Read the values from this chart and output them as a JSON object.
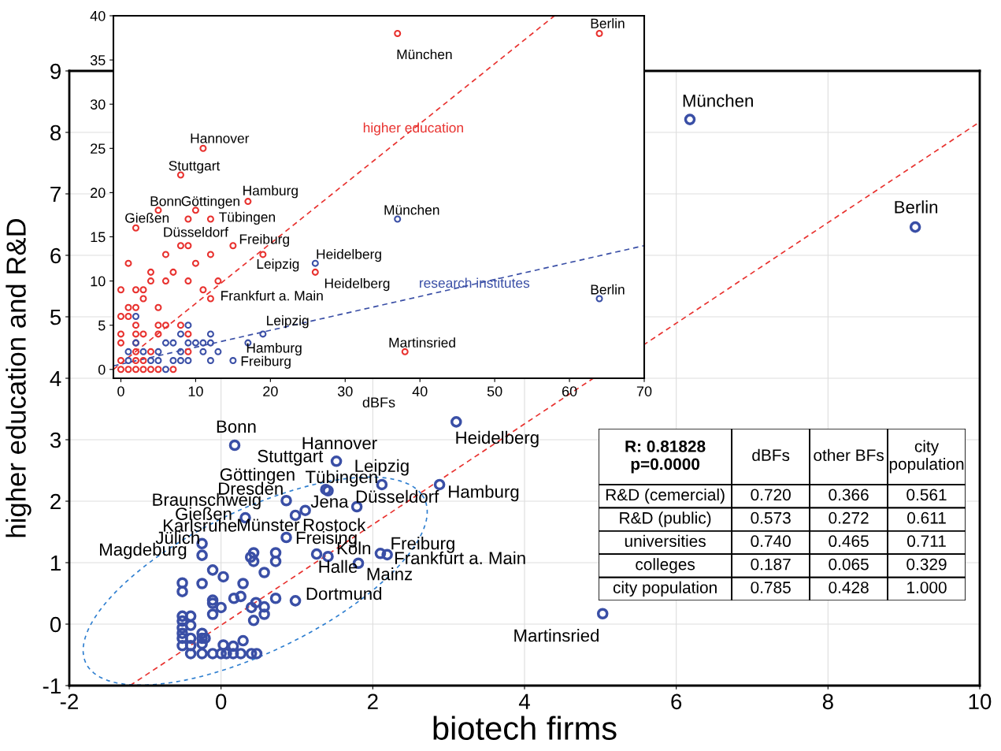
{
  "chart_data": [
    {
      "type": "scatter",
      "xlabel": "biotech firms",
      "ylabel": "higher education and R&D",
      "xlim": [
        -2,
        10
      ],
      "ylim": [
        -1,
        9
      ],
      "xticks": [
        -2,
        0,
        2,
        4,
        6,
        8,
        10
      ],
      "yticks": [
        -1,
        0,
        1,
        2,
        3,
        4,
        5,
        6,
        7,
        8,
        9
      ],
      "grid": true,
      "series": [
        {
          "color": "#3a4fa6",
          "marker": "circle",
          "x": [
            6.18,
            9.15,
            3.1,
            0.18,
            1.52,
            2.12,
            2.88,
            1.38,
            1.41,
            1.79,
            0.86,
            1.11,
            0.98,
            0.32,
            0.86,
            1.26,
            1.41,
            1.81,
            2.1,
            2.19,
            0.98,
            5.03,
            -0.25,
            -0.25,
            0.43,
            0.39,
            0.43,
            0.72,
            0.72,
            -0.11,
            0.03,
            0.57,
            -0.51,
            -0.51,
            -0.25,
            0.29,
            -0.11,
            -0.11,
            0.0,
            0.17,
            0.26,
            0.46,
            0.4,
            0.57,
            0.57,
            0.72,
            -0.11,
            0.43,
            -0.51,
            -0.4,
            -0.51,
            -0.51,
            -0.51,
            -0.51,
            -0.51,
            -0.4,
            -0.4,
            -0.4,
            -0.25,
            -0.25,
            -0.21,
            -0.25,
            -0.4,
            -0.25,
            -0.11,
            0.0,
            0.07,
            0.16,
            0.26,
            0.4,
            0.47,
            0.03,
            0.16,
            0.29
          ],
          "values": [
            8.21,
            6.46,
            3.29,
            2.91,
            2.65,
            2.27,
            2.27,
            2.19,
            2.17,
            1.91,
            2.01,
            1.85,
            1.77,
            1.73,
            1.41,
            1.14,
            1.1,
            0.99,
            1.15,
            1.13,
            0.38,
            0.17,
            1.31,
            1.12,
            1.16,
            1.09,
            1.02,
            1.16,
            1.02,
            0.88,
            0.77,
            0.84,
            0.67,
            0.53,
            0.66,
            0.66,
            0.39,
            0.34,
            0.27,
            0.42,
            0.45,
            0.35,
            0.27,
            0.28,
            0.16,
            0.42,
            0.16,
            0.06,
            0.13,
            0.13,
            0.05,
            -0.06,
            -0.15,
            -0.23,
            -0.35,
            -0.02,
            -0.23,
            -0.35,
            -0.15,
            -0.23,
            -0.23,
            -0.32,
            -0.48,
            -0.48,
            -0.48,
            -0.48,
            -0.48,
            -0.48,
            -0.48,
            -0.48,
            -0.48,
            -0.34,
            -0.36,
            -0.27
          ]
        },
        {
          "type": "line",
          "color": "#e8312e",
          "line_style": "dashed",
          "x": [
            -1.2,
            10
          ],
          "values": [
            -1,
            8.17
          ]
        }
      ],
      "annotations": [
        "München",
        "Berlin",
        "Bonn",
        "Heidelberg",
        "Hannover",
        "Stuttgart",
        "Leipzig",
        "Göttingen",
        "Tübingen",
        "Dresden",
        "Braunschweig",
        "Jena",
        "Düsseldorf",
        "Hamburg",
        "Gießen",
        "Karlsruhe",
        "Münster",
        "Rostock",
        "Jülich",
        "Freising",
        "Magdeburg",
        "Köln",
        "Freiburg",
        "Frankfurt a. Main",
        "Halle",
        "Mainz",
        "Dortmund",
        "Martinsried"
      ]
    },
    {
      "type": "scatter",
      "xlabel": "dBFs",
      "xlim": [
        -1,
        70
      ],
      "ylim": [
        -1,
        40
      ],
      "xticks": [
        0,
        10,
        20,
        30,
        40,
        50,
        60,
        70
      ],
      "yticks": [
        0,
        5,
        10,
        15,
        20,
        25,
        30,
        35,
        40
      ],
      "series": [
        {
          "color": "#e8312e",
          "marker": "circle",
          "x": [
            17,
            5,
            10,
            9,
            12,
            2,
            8,
            9,
            15,
            6,
            12,
            19,
            1,
            10,
            4,
            7,
            26,
            4,
            6,
            9,
            13,
            0,
            2,
            3,
            11,
            3,
            12,
            1,
            2,
            5,
            0,
            1,
            2,
            5,
            6,
            8,
            0,
            2,
            3,
            5,
            9,
            0,
            2,
            2,
            4,
            9,
            0,
            2,
            3,
            0,
            1,
            2,
            3,
            4,
            5,
            7,
            37,
            64,
            11,
            8,
            38
          ],
          "values": [
            19,
            18,
            18,
            17,
            17,
            16,
            14,
            14,
            14,
            13,
            13,
            13,
            12,
            12,
            11,
            11,
            11,
            10,
            10,
            10,
            10,
            9,
            9,
            9,
            9,
            8,
            8,
            7,
            7,
            7,
            6,
            6,
            5,
            5,
            5,
            5,
            4,
            4,
            4,
            4,
            4,
            3,
            3,
            2,
            2,
            2,
            1,
            1,
            1,
            0,
            0,
            0,
            0,
            0,
            0,
            0,
            38,
            38,
            25,
            22,
            2
          ]
        },
        {
          "color": "#3a4fa6",
          "marker": "circle",
          "x": [
            2,
            9,
            8,
            12,
            19,
            2,
            6,
            7,
            9,
            10,
            11,
            12,
            17,
            1,
            3,
            5,
            8,
            11,
            13,
            1,
            4,
            5,
            7,
            8,
            9,
            12,
            15,
            6,
            26,
            37,
            64
          ],
          "values": [
            6,
            5,
            4,
            4,
            4,
            3,
            3,
            3,
            3,
            3,
            3,
            3,
            3,
            2,
            2,
            2,
            2,
            2,
            2,
            1,
            1,
            1,
            1,
            1,
            1,
            1,
            1,
            0,
            12,
            17,
            8
          ]
        },
        {
          "type": "line",
          "name": "higher education",
          "color": "#e8312e",
          "line_style": "dashed",
          "x": [
            -1,
            58
          ],
          "values": [
            0,
            40
          ]
        },
        {
          "type": "line",
          "name": "research institutes",
          "color": "#3a4fa6",
          "line_style": "dashed",
          "x": [
            -1,
            70
          ],
          "values": [
            0.4,
            14
          ]
        }
      ],
      "annotations": [
        "Berlin",
        "München",
        "Hannover",
        "Stuttgart",
        "Hamburg",
        "Bonn",
        "Göttingen",
        "Tübingen",
        "Gießen",
        "Düsseldorf",
        "Freiburg",
        "Leipzig",
        "Heidelberg",
        "Heidelberg",
        "Frankfurt a. Main",
        "München",
        "Berlin",
        "Leipzig",
        "Hamburg",
        "Freiburg",
        "Martinsried"
      ]
    },
    {
      "type": "other",
      "title": "R: 0.81828\np=0.0000",
      "categories": [
        "dBFs",
        "other BFs",
        "city\npopulation"
      ],
      "y_categories": [
        "R&D (cemercial)",
        "R&D (public)",
        "universities",
        "colleges",
        "city population"
      ],
      "cell_labels": [
        [
          "0.720",
          "0.366",
          "0.561"
        ],
        [
          "0.573",
          "0.272",
          "0.611"
        ],
        [
          "0.740",
          "0.465",
          "0.711"
        ],
        [
          "0.187",
          "0.065",
          "0.329"
        ],
        [
          "0.785",
          "0.428",
          "1.000"
        ]
      ]
    }
  ]
}
